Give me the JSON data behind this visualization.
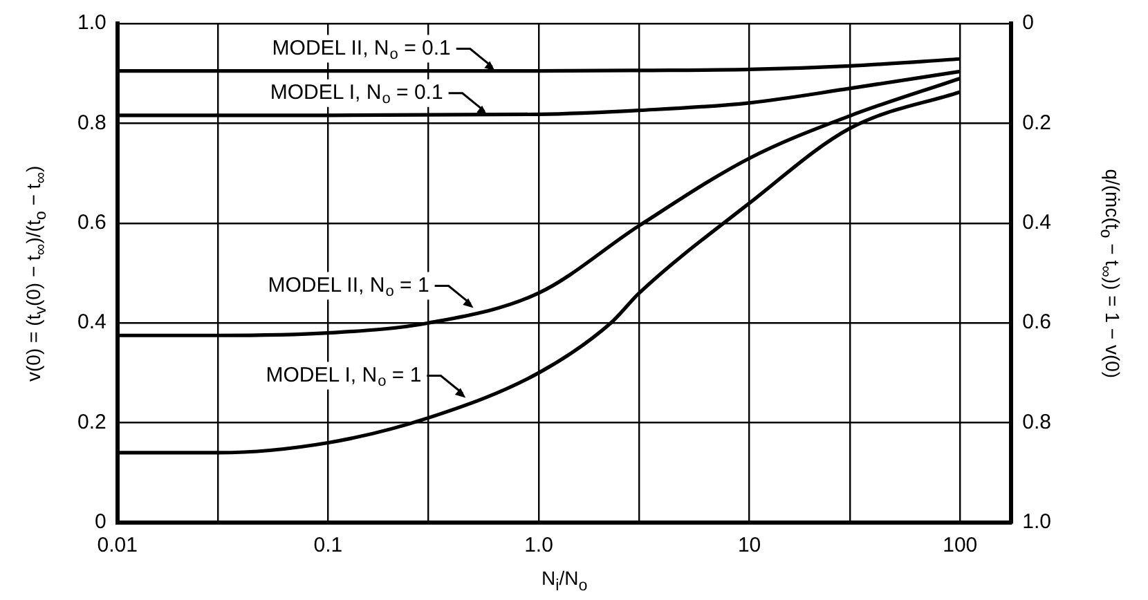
{
  "chart_data": {
    "type": "line",
    "xlabel": "N$_{i}$/N$_{o}$",
    "ylabel": "v(0) = (t$_{v}$(0) − t$_{∞}$)/(t$_{o}$ − t$_{∞}$)",
    "y2label": "q/(ṁc(t$_{o}$ − t$_{∞}$)) = 1 − v(0)",
    "log": "x",
    "grid": true,
    "marker": "none",
    "line_style": "solid",
    "xlim": [
      0.01,
      175
    ],
    "xticks": [
      0.01,
      {
        "value": 0.03,
        "label": null
      },
      0.1,
      {
        "value": 0.3,
        "label": null
      },
      {
        "value": 1,
        "label": "1.0"
      },
      {
        "value": 3,
        "label": null
      },
      10,
      {
        "value": 30,
        "label": null
      },
      100
    ],
    "ylim": [
      0,
      1
    ],
    "yticks": [
      0,
      0.2,
      0.4,
      0.6,
      0.8,
      {
        "value": 1,
        "label": "1.0"
      }
    ],
    "y2lim": [
      1,
      0
    ],
    "y2ticks": [
      0,
      0.2,
      0.4,
      0.6,
      0.8,
      {
        "value": 1,
        "label": "1.0"
      }
    ],
    "series": [
      {
        "color": "#000000",
        "x": [
          0.01,
          0.1,
          1,
          3,
          10,
          30,
          100
        ],
        "values": [
          0.905,
          0.905,
          0.905,
          0.906,
          0.908,
          0.915,
          0.929
        ]
      },
      {
        "color": "#000000",
        "x": [
          0.01,
          0.1,
          1,
          3,
          10,
          30,
          100
        ],
        "values": [
          0.816,
          0.816,
          0.818,
          0.826,
          0.841,
          0.87,
          0.904
        ]
      },
      {
        "color": "#000000",
        "x": [
          0.01,
          0.03,
          0.1,
          0.3,
          1,
          3,
          10,
          30,
          100
        ],
        "values": [
          0.375,
          0.375,
          0.38,
          0.4,
          0.46,
          0.595,
          0.73,
          0.815,
          0.89
        ]
      },
      {
        "color": "#000000",
        "x": [
          0.01,
          0.03,
          0.1,
          0.3,
          1,
          2.2,
          3,
          10,
          30,
          100
        ],
        "values": [
          0.14,
          0.14,
          0.16,
          0.21,
          0.3,
          0.4,
          0.46,
          0.64,
          0.79,
          0.863
        ]
      }
    ],
    "annotations": [
      {
        "text": "MODEL II, N$_{o}$ = 0.1",
        "x": 0.62,
        "y": 0.905
      },
      {
        "text": "MODEL I, N$_{o}$ = 0.1",
        "x": 0.57,
        "y": 0.816
      },
      {
        "text": "MODEL II, N$_{o}$ = 1",
        "x": 0.49,
        "y": 0.43
      },
      {
        "text": "MODEL I, N$_{o}$ = 1",
        "x": 0.45,
        "y": 0.25
      }
    ]
  }
}
